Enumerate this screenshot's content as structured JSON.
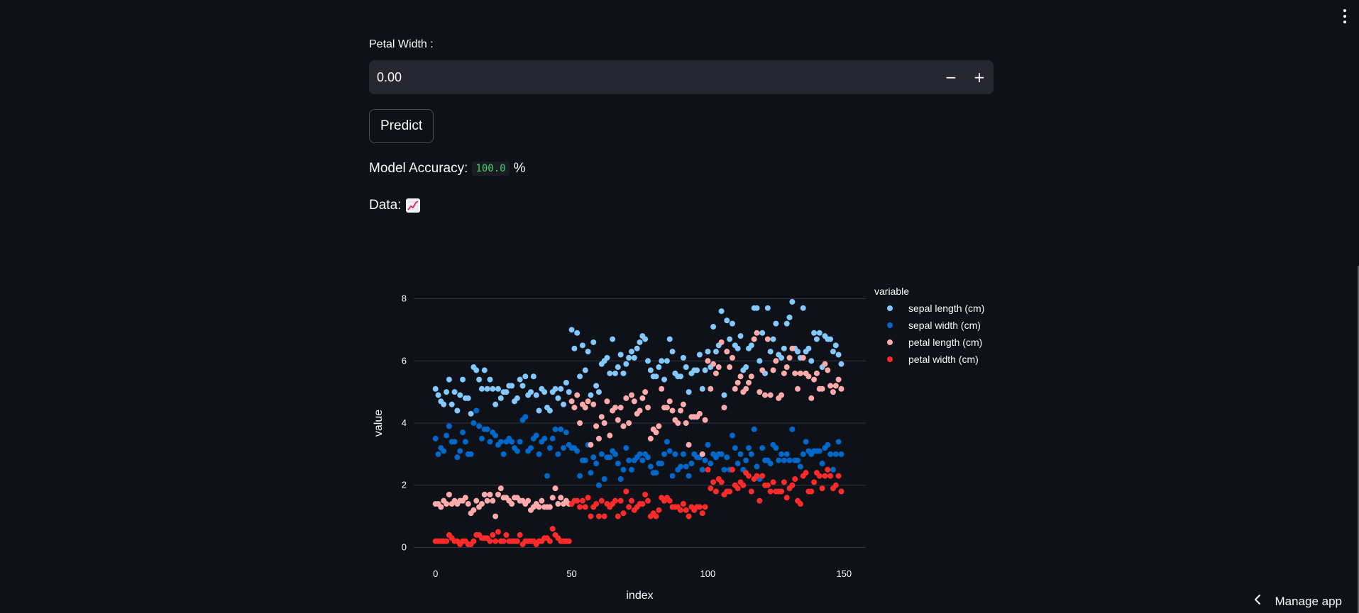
{
  "form": {
    "petal_width_label": "Petal Width :",
    "petal_width_value": "0.00",
    "minus_label": "−",
    "plus_label": "+",
    "predict_label": "Predict"
  },
  "accuracy": {
    "label": "Model Accuracy:",
    "value": "100.0",
    "unit": "%"
  },
  "data_label": "Data:",
  "data_icon": "chart-increasing-emoji",
  "manage_app": {
    "label": "Manage app",
    "icon": "chevron-left-icon"
  },
  "colors": {
    "background": "#0e1117",
    "sepal_length": "#83c9ff",
    "sepal_width": "#0068c9",
    "petal_length": "#ffabab",
    "petal_width": "#ff2b2b",
    "accuracy_code": "#3dd56d"
  },
  "chart_data": {
    "type": "scatter",
    "xlabel": "index",
    "ylabel": "value",
    "xlim": [
      -8,
      158
    ],
    "ylim": [
      -0.4,
      8.4
    ],
    "x_ticks": [
      0,
      50,
      100,
      150
    ],
    "y_ticks": [
      0,
      2,
      4,
      6,
      8
    ],
    "grid": "horizontal",
    "legend_title": "variable",
    "legend_position": "right",
    "series": [
      {
        "name": "sepal length (cm)",
        "color": "#83c9ff",
        "values": [
          5.1,
          4.9,
          4.7,
          4.6,
          5.0,
          5.4,
          4.6,
          5.0,
          4.4,
          4.9,
          5.4,
          4.8,
          4.8,
          4.3,
          5.8,
          5.7,
          5.4,
          5.1,
          5.7,
          5.1,
          5.4,
          5.1,
          4.6,
          5.1,
          4.8,
          5.0,
          5.0,
          5.2,
          5.2,
          4.7,
          4.8,
          5.4,
          5.2,
          5.5,
          4.9,
          5.0,
          5.5,
          4.9,
          4.4,
          5.1,
          5.0,
          4.5,
          4.4,
          5.0,
          5.1,
          4.8,
          5.1,
          4.6,
          5.3,
          5.0,
          7.0,
          6.4,
          6.9,
          5.5,
          6.5,
          5.7,
          6.3,
          4.9,
          6.6,
          5.2,
          5.0,
          5.9,
          6.0,
          6.1,
          5.6,
          6.7,
          5.6,
          5.8,
          6.2,
          5.6,
          5.9,
          6.1,
          6.3,
          6.1,
          6.4,
          6.6,
          6.8,
          6.7,
          6.0,
          5.7,
          5.5,
          5.5,
          5.8,
          6.0,
          5.4,
          6.0,
          6.7,
          6.3,
          5.6,
          5.5,
          5.5,
          6.1,
          5.8,
          5.0,
          5.6,
          5.7,
          5.7,
          6.2,
          5.1,
          5.7,
          6.3,
          5.8,
          7.1,
          6.3,
          6.5,
          7.6,
          4.9,
          7.3,
          6.7,
          7.2,
          6.5,
          6.4,
          6.8,
          5.7,
          5.8,
          6.4,
          6.5,
          7.7,
          7.7,
          6.0,
          6.9,
          5.6,
          7.7,
          6.3,
          6.7,
          7.2,
          6.2,
          6.1,
          6.4,
          7.2,
          7.4,
          7.9,
          6.4,
          6.3,
          6.1,
          7.7,
          6.3,
          6.4,
          6.0,
          6.9,
          6.7,
          6.9,
          5.8,
          6.8,
          6.7,
          6.7,
          6.3,
          6.5,
          6.2,
          5.9
        ]
      },
      {
        "name": "sepal width (cm)",
        "color": "#0068c9",
        "values": [
          3.5,
          3.0,
          3.2,
          3.1,
          3.6,
          3.9,
          3.4,
          3.4,
          2.9,
          3.1,
          3.7,
          3.4,
          3.0,
          3.0,
          4.0,
          4.4,
          3.9,
          3.5,
          3.8,
          3.8,
          3.4,
          3.7,
          3.6,
          3.3,
          3.4,
          3.0,
          3.4,
          3.5,
          3.4,
          3.2,
          3.1,
          3.4,
          4.1,
          4.2,
          3.1,
          3.2,
          3.5,
          3.6,
          3.0,
          3.4,
          3.5,
          2.3,
          3.2,
          3.5,
          3.8,
          3.0,
          3.8,
          3.2,
          3.7,
          3.3,
          3.2,
          3.2,
          3.1,
          2.3,
          2.8,
          2.8,
          3.3,
          2.4,
          2.9,
          2.7,
          2.0,
          3.0,
          2.2,
          2.9,
          2.9,
          3.1,
          3.0,
          2.7,
          2.2,
          2.5,
          3.2,
          2.8,
          2.5,
          2.8,
          2.9,
          3.0,
          2.8,
          3.0,
          2.9,
          2.6,
          2.4,
          2.4,
          2.7,
          2.7,
          3.0,
          3.4,
          3.1,
          2.3,
          3.0,
          2.5,
          2.6,
          3.0,
          2.6,
          2.3,
          2.7,
          3.0,
          2.9,
          2.9,
          2.5,
          2.8,
          3.3,
          2.7,
          3.0,
          2.9,
          3.0,
          3.0,
          2.5,
          2.9,
          2.5,
          3.6,
          3.2,
          2.7,
          3.0,
          2.5,
          2.8,
          3.2,
          3.0,
          3.8,
          2.6,
          2.2,
          3.2,
          2.8,
          2.8,
          2.7,
          3.3,
          3.2,
          2.8,
          3.0,
          2.8,
          3.0,
          2.8,
          3.8,
          2.8,
          2.8,
          2.6,
          3.0,
          3.4,
          3.1,
          3.0,
          3.1,
          3.1,
          3.1,
          2.7,
          3.2,
          3.3,
          3.0,
          2.5,
          3.0,
          3.4,
          3.0
        ]
      },
      {
        "name": "petal length (cm)",
        "color": "#ffabab",
        "values": [
          1.4,
          1.4,
          1.3,
          1.5,
          1.4,
          1.7,
          1.4,
          1.5,
          1.4,
          1.5,
          1.5,
          1.6,
          1.4,
          1.1,
          1.2,
          1.5,
          1.3,
          1.4,
          1.7,
          1.5,
          1.7,
          1.5,
          1.0,
          1.7,
          1.9,
          1.6,
          1.6,
          1.5,
          1.4,
          1.6,
          1.6,
          1.5,
          1.5,
          1.4,
          1.5,
          1.2,
          1.3,
          1.4,
          1.3,
          1.5,
          1.3,
          1.3,
          1.3,
          1.6,
          1.9,
          1.4,
          1.6,
          1.4,
          1.5,
          1.4,
          4.7,
          4.5,
          4.9,
          4.0,
          4.6,
          4.5,
          4.7,
          3.3,
          4.6,
          3.9,
          3.5,
          4.2,
          4.0,
          4.7,
          3.6,
          4.4,
          4.5,
          4.1,
          4.5,
          3.9,
          4.8,
          4.0,
          4.9,
          4.7,
          4.3,
          4.4,
          4.8,
          5.0,
          4.5,
          3.5,
          3.8,
          3.7,
          3.9,
          5.1,
          4.5,
          4.5,
          4.7,
          4.4,
          4.1,
          4.0,
          4.4,
          4.6,
          4.0,
          3.3,
          4.2,
          4.2,
          4.2,
          4.3,
          3.0,
          4.1,
          6.0,
          5.1,
          5.9,
          5.6,
          5.8,
          6.6,
          4.5,
          6.3,
          5.8,
          6.1,
          5.1,
          5.3,
          5.5,
          5.0,
          5.1,
          5.3,
          5.5,
          6.7,
          6.9,
          5.0,
          5.7,
          4.9,
          6.7,
          4.9,
          5.7,
          6.0,
          4.8,
          4.9,
          5.6,
          5.8,
          6.1,
          6.4,
          5.6,
          5.1,
          5.6,
          6.1,
          5.6,
          5.5,
          4.8,
          5.4,
          5.6,
          5.1,
          5.1,
          5.9,
          5.7,
          5.2,
          5.0,
          5.2,
          5.4,
          5.1
        ]
      },
      {
        "name": "petal width (cm)",
        "color": "#ff2b2b",
        "values": [
          0.2,
          0.2,
          0.2,
          0.2,
          0.2,
          0.4,
          0.3,
          0.2,
          0.2,
          0.1,
          0.2,
          0.2,
          0.1,
          0.1,
          0.2,
          0.4,
          0.4,
          0.3,
          0.3,
          0.3,
          0.2,
          0.4,
          0.2,
          0.5,
          0.2,
          0.2,
          0.4,
          0.2,
          0.2,
          0.2,
          0.2,
          0.4,
          0.1,
          0.2,
          0.2,
          0.2,
          0.2,
          0.1,
          0.2,
          0.2,
          0.3,
          0.3,
          0.2,
          0.6,
          0.4,
          0.3,
          0.2,
          0.2,
          0.2,
          0.2,
          1.4,
          1.5,
          1.5,
          1.3,
          1.5,
          1.3,
          1.6,
          1.0,
          1.3,
          1.4,
          1.0,
          1.5,
          1.0,
          1.4,
          1.3,
          1.4,
          1.5,
          1.0,
          1.5,
          1.1,
          1.8,
          1.3,
          1.5,
          1.2,
          1.3,
          1.4,
          1.4,
          1.7,
          1.5,
          1.0,
          1.1,
          1.0,
          1.2,
          1.6,
          1.5,
          1.6,
          1.5,
          1.3,
          1.3,
          1.3,
          1.2,
          1.4,
          1.2,
          1.0,
          1.3,
          1.2,
          1.3,
          1.3,
          1.1,
          1.3,
          2.5,
          1.9,
          2.1,
          1.8,
          2.2,
          2.1,
          1.7,
          1.8,
          1.8,
          2.5,
          2.0,
          1.9,
          2.1,
          2.0,
          2.4,
          2.3,
          1.8,
          2.2,
          2.3,
          1.5,
          2.3,
          2.0,
          2.0,
          1.8,
          2.1,
          1.8,
          1.8,
          1.8,
          2.1,
          1.6,
          1.9,
          2.0,
          2.2,
          1.5,
          1.4,
          2.3,
          2.4,
          1.8,
          1.8,
          2.1,
          2.4,
          2.3,
          1.9,
          2.3,
          2.5,
          2.3,
          1.9,
          2.0,
          2.3,
          1.8
        ]
      }
    ]
  }
}
